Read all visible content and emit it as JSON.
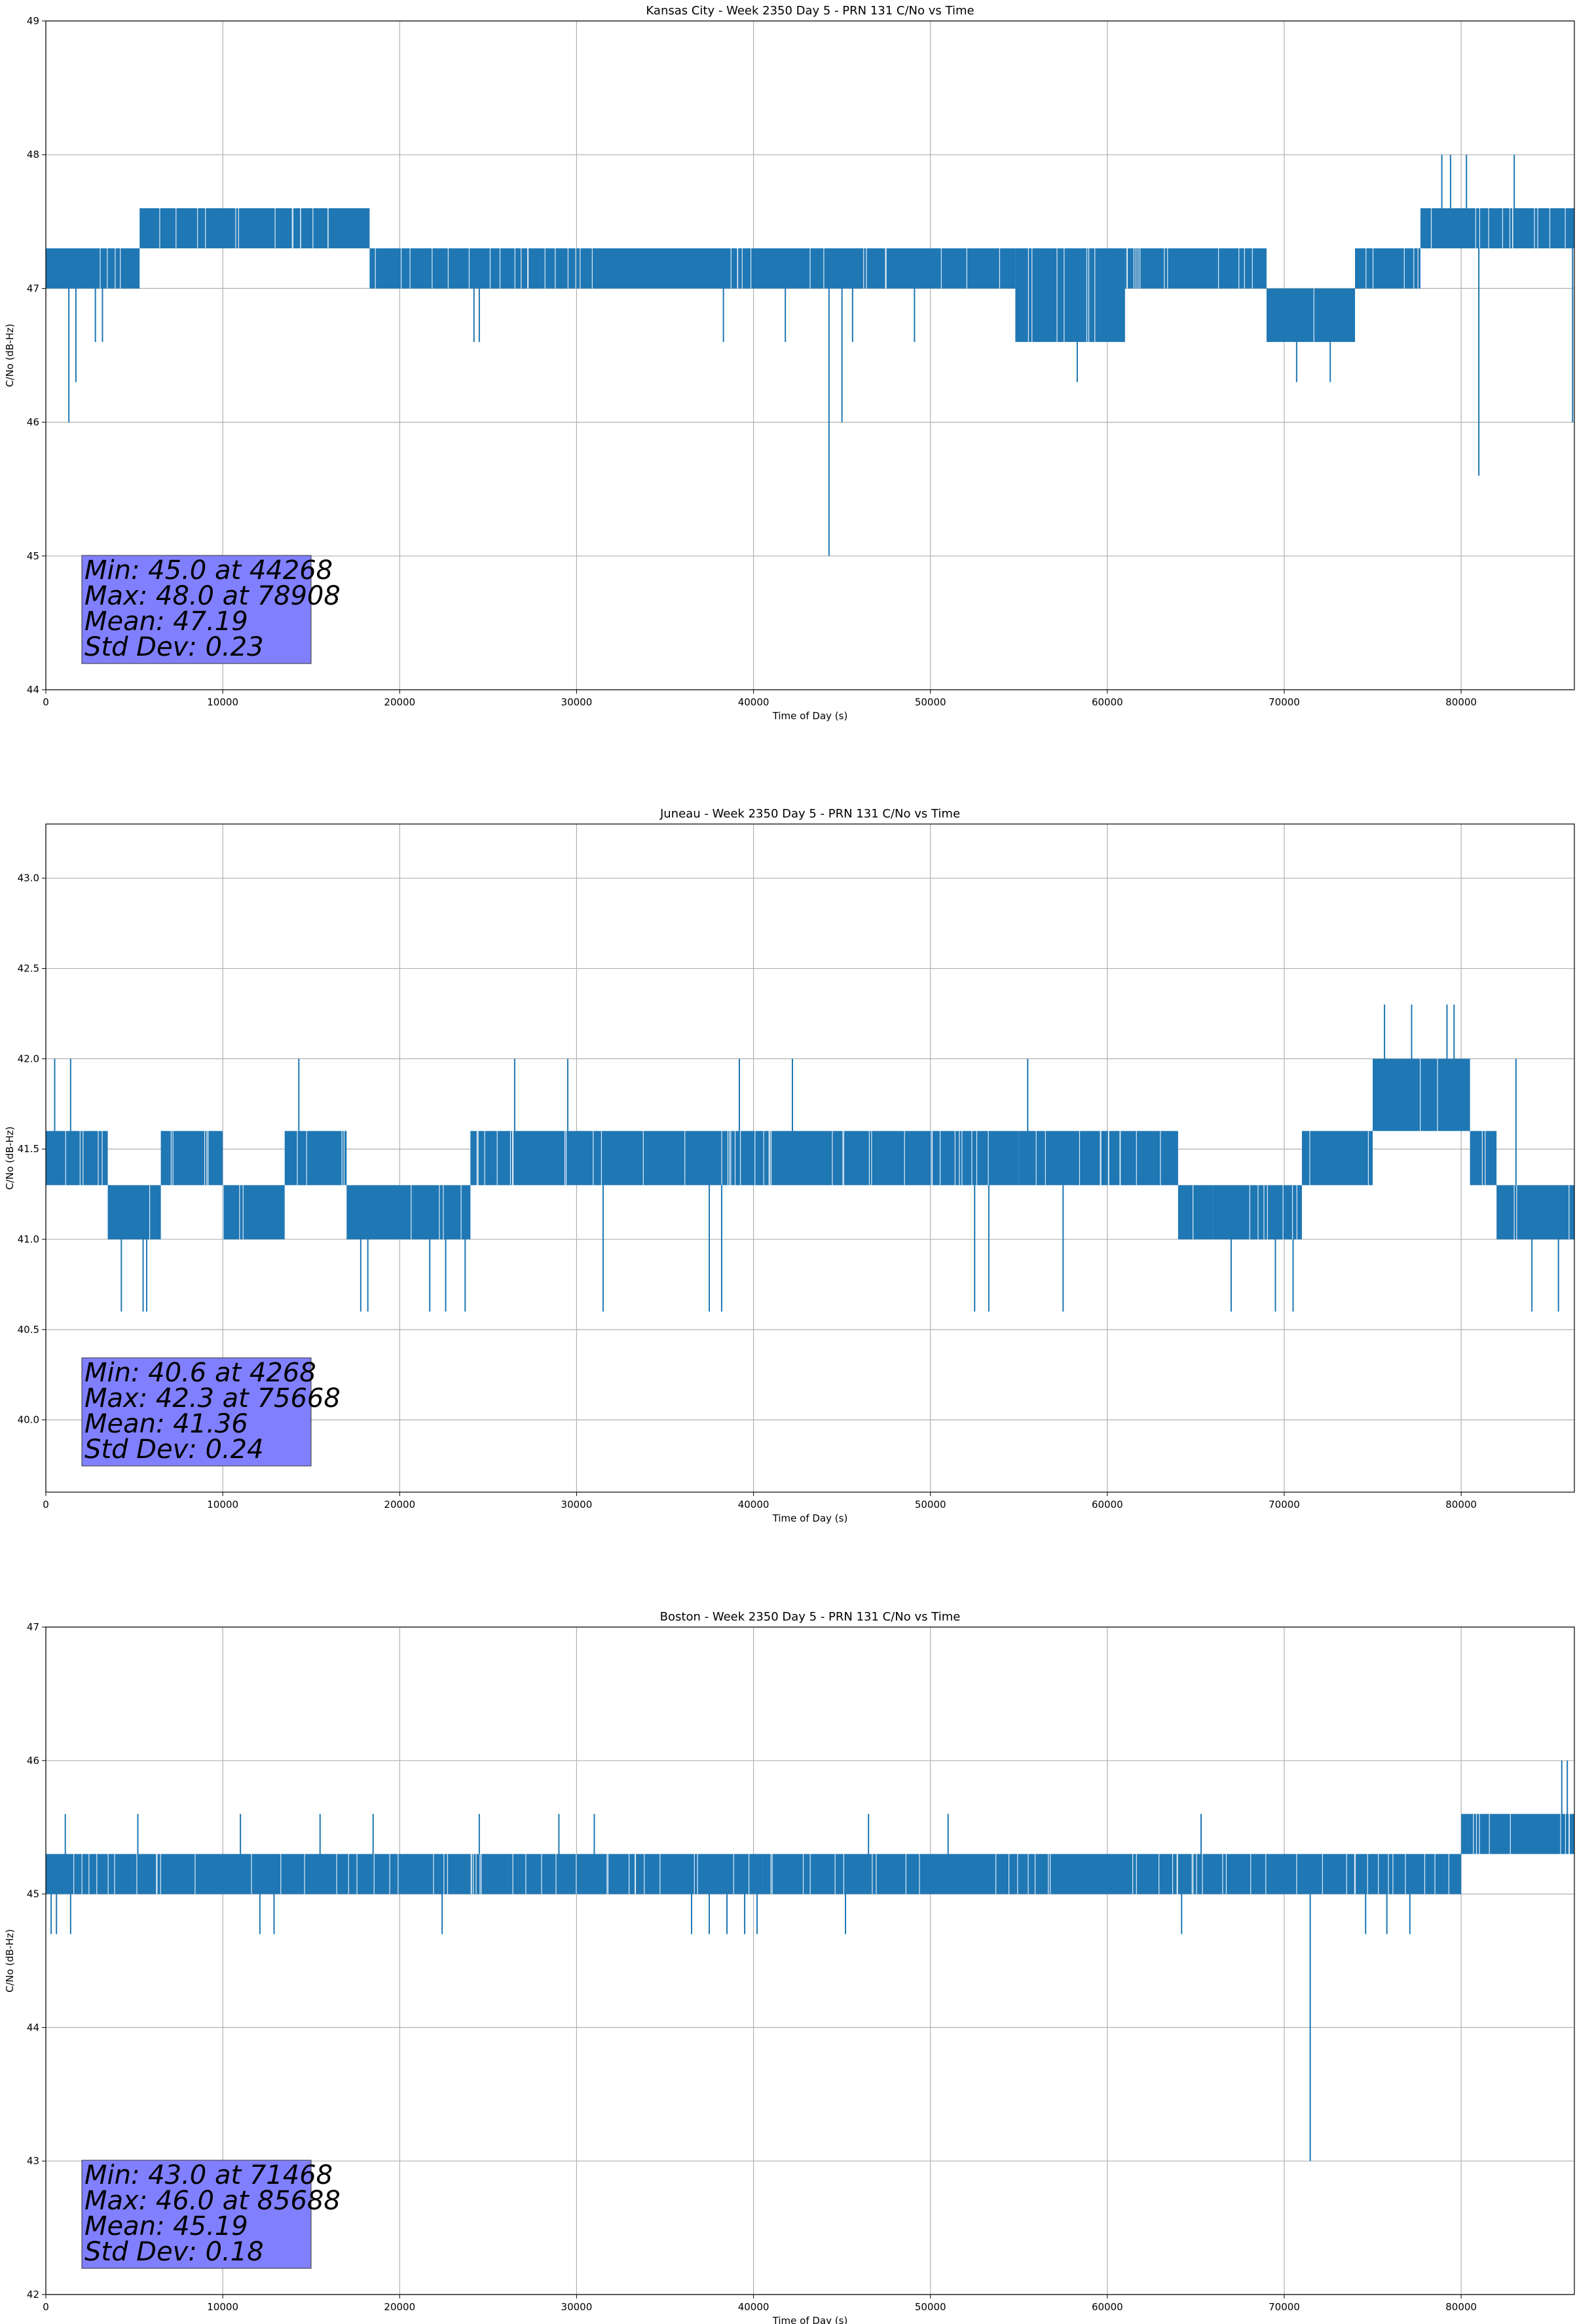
{
  "chart_data": [
    {
      "type": "line",
      "title": "Kansas City - Week 2350 Day 5 - PRN 131 C/No vs Time",
      "xlabel": "Time of Day (s)",
      "ylabel": "C/No (dB-Hz)",
      "xlim": [
        0,
        86400
      ],
      "ylim": [
        44,
        49
      ],
      "xticks": [
        0,
        10000,
        20000,
        30000,
        40000,
        50000,
        60000,
        70000,
        80000
      ],
      "yticks": [
        44,
        45,
        46,
        47,
        48,
        49
      ],
      "ytick_decimals": 0,
      "grid": true,
      "line_color": "#1f77b4",
      "stats_box_color": "#8080ff",
      "stats": [
        "Min: 45.0 at 44268",
        "Max: 48.0 at 78908",
        "Mean: 47.19",
        "Std Dev: 0.23"
      ],
      "segments": [
        {
          "x": [
            0,
            5300
          ],
          "lo": 47.0,
          "hi": 47.3
        },
        {
          "x": [
            5300,
            18300
          ],
          "lo": 47.3,
          "hi": 47.6
        },
        {
          "x": [
            18300,
            54800
          ],
          "lo": 47.0,
          "hi": 47.3
        },
        {
          "x": [
            54800,
            61000
          ],
          "lo": 46.6,
          "hi": 47.3
        },
        {
          "x": [
            61000,
            69000
          ],
          "lo": 47.0,
          "hi": 47.3
        },
        {
          "x": [
            69000,
            74000
          ],
          "lo": 46.6,
          "hi": 47.0
        },
        {
          "x": [
            74000,
            77700
          ],
          "lo": 47.0,
          "hi": 47.3
        },
        {
          "x": [
            77700,
            86400
          ],
          "lo": 47.3,
          "hi": 47.6
        }
      ],
      "spikes": [
        {
          "x": 1300,
          "y": 46.0
        },
        {
          "x": 1700,
          "y": 46.3
        },
        {
          "x": 2800,
          "y": 46.6
        },
        {
          "x": 3200,
          "y": 46.6
        },
        {
          "x": 24200,
          "y": 46.6
        },
        {
          "x": 24500,
          "y": 46.6
        },
        {
          "x": 38300,
          "y": 46.6
        },
        {
          "x": 41800,
          "y": 46.6
        },
        {
          "x": 44268,
          "y": 45.0
        },
        {
          "x": 45000,
          "y": 46.0
        },
        {
          "x": 45600,
          "y": 46.6
        },
        {
          "x": 49100,
          "y": 46.6
        },
        {
          "x": 58300,
          "y": 46.3
        },
        {
          "x": 70700,
          "y": 46.3
        },
        {
          "x": 72600,
          "y": 46.3
        },
        {
          "x": 81000,
          "y": 45.6
        },
        {
          "x": 86300,
          "y": 46.0
        },
        {
          "x": 78908,
          "y": 48.0
        },
        {
          "x": 79400,
          "y": 48.0
        },
        {
          "x": 80300,
          "y": 48.0
        },
        {
          "x": 83000,
          "y": 48.0
        }
      ]
    },
    {
      "type": "line",
      "title": "Juneau - Week 2350 Day 5 - PRN 131 C/No vs Time",
      "xlabel": "Time of Day (s)",
      "ylabel": "C/No (dB-Hz)",
      "xlim": [
        0,
        86400
      ],
      "ylim": [
        39.6,
        43.3
      ],
      "xticks": [
        0,
        10000,
        20000,
        30000,
        40000,
        50000,
        60000,
        70000,
        80000
      ],
      "yticks": [
        40.0,
        40.5,
        41.0,
        41.5,
        42.0,
        42.5,
        43.0
      ],
      "ytick_decimals": 1,
      "grid": true,
      "line_color": "#1f77b4",
      "stats_box_color": "#8080ff",
      "stats": [
        "Min: 40.6 at 4268",
        "Max: 42.3 at 75668",
        "Mean: 41.36",
        "Std Dev: 0.24"
      ],
      "segments": [
        {
          "x": [
            0,
            3500
          ],
          "lo": 41.3,
          "hi": 41.6
        },
        {
          "x": [
            3500,
            6500
          ],
          "lo": 41.0,
          "hi": 41.3
        },
        {
          "x": [
            6500,
            10000
          ],
          "lo": 41.3,
          "hi": 41.6
        },
        {
          "x": [
            10000,
            13500
          ],
          "lo": 41.0,
          "hi": 41.3
        },
        {
          "x": [
            13500,
            17000
          ],
          "lo": 41.3,
          "hi": 41.6
        },
        {
          "x": [
            17000,
            24000
          ],
          "lo": 41.0,
          "hi": 41.3
        },
        {
          "x": [
            24000,
            55000
          ],
          "lo": 41.3,
          "hi": 41.6
        },
        {
          "x": [
            55000,
            60000
          ],
          "lo": 41.3,
          "hi": 41.6
        },
        {
          "x": [
            60000,
            64000
          ],
          "lo": 41.3,
          "hi": 41.6
        },
        {
          "x": [
            64000,
            66000
          ],
          "lo": 41.0,
          "hi": 41.3
        },
        {
          "x": [
            66000,
            71000
          ],
          "lo": 41.0,
          "hi": 41.3
        },
        {
          "x": [
            71000,
            75000
          ],
          "lo": 41.3,
          "hi": 41.6
        },
        {
          "x": [
            75000,
            80500
          ],
          "lo": 41.6,
          "hi": 42.0
        },
        {
          "x": [
            80500,
            82000
          ],
          "lo": 41.3,
          "hi": 41.6
        },
        {
          "x": [
            82000,
            86400
          ],
          "lo": 41.0,
          "hi": 41.3
        }
      ],
      "spikes": [
        {
          "x": 4268,
          "y": 40.6
        },
        {
          "x": 5500,
          "y": 40.6
        },
        {
          "x": 5700,
          "y": 40.6
        },
        {
          "x": 17800,
          "y": 40.6
        },
        {
          "x": 18200,
          "y": 40.6
        },
        {
          "x": 21700,
          "y": 40.6
        },
        {
          "x": 22600,
          "y": 40.6
        },
        {
          "x": 23700,
          "y": 40.6
        },
        {
          "x": 31500,
          "y": 40.6
        },
        {
          "x": 37500,
          "y": 40.6
        },
        {
          "x": 38200,
          "y": 40.6
        },
        {
          "x": 52500,
          "y": 40.6
        },
        {
          "x": 53300,
          "y": 40.6
        },
        {
          "x": 57500,
          "y": 40.6
        },
        {
          "x": 67000,
          "y": 40.6
        },
        {
          "x": 69500,
          "y": 40.6
        },
        {
          "x": 70500,
          "y": 40.6
        },
        {
          "x": 84000,
          "y": 40.6
        },
        {
          "x": 85500,
          "y": 40.6
        },
        {
          "x": 75668,
          "y": 42.3
        },
        {
          "x": 77200,
          "y": 42.3
        },
        {
          "x": 79200,
          "y": 42.3
        },
        {
          "x": 79600,
          "y": 42.3
        },
        {
          "x": 14300,
          "y": 42.0
        },
        {
          "x": 26500,
          "y": 42.0
        },
        {
          "x": 29500,
          "y": 42.0
        },
        {
          "x": 39200,
          "y": 42.0
        },
        {
          "x": 42200,
          "y": 42.0
        },
        {
          "x": 55500,
          "y": 42.0
        },
        {
          "x": 83100,
          "y": 42.0
        },
        {
          "x": 500,
          "y": 42.0
        },
        {
          "x": 1400,
          "y": 42.0
        }
      ]
    },
    {
      "type": "line",
      "title": "Boston - Week 2350 Day 5 - PRN 131 C/No vs Time",
      "xlabel": "Time of Day (s)",
      "ylabel": "C/No (dB-Hz)",
      "xlim": [
        0,
        86400
      ],
      "ylim": [
        42,
        47
      ],
      "xticks": [
        0,
        10000,
        20000,
        30000,
        40000,
        50000,
        60000,
        70000,
        80000
      ],
      "yticks": [
        42,
        43,
        44,
        45,
        46,
        47
      ],
      "ytick_decimals": 0,
      "grid": true,
      "line_color": "#1f77b4",
      "stats_box_color": "#8080ff",
      "stats": [
        "Min: 43.0 at 71468",
        "Max: 46.0 at 85688",
        "Mean: 45.19",
        "Std Dev: 0.18"
      ],
      "segments": [
        {
          "x": [
            0,
            36000
          ],
          "lo": 45.0,
          "hi": 45.3
        },
        {
          "x": [
            36000,
            40500
          ],
          "lo": 45.0,
          "hi": 45.3
        },
        {
          "x": [
            40500,
            74000
          ],
          "lo": 45.0,
          "hi": 45.3
        },
        {
          "x": [
            74000,
            78000
          ],
          "lo": 45.0,
          "hi": 45.3
        },
        {
          "x": [
            78000,
            80000
          ],
          "lo": 45.0,
          "hi": 45.3
        },
        {
          "x": [
            80000,
            86400
          ],
          "lo": 45.3,
          "hi": 45.6
        }
      ],
      "spikes": [
        {
          "x": 71468,
          "y": 43.0
        },
        {
          "x": 300,
          "y": 44.7
        },
        {
          "x": 600,
          "y": 44.7
        },
        {
          "x": 1400,
          "y": 44.7
        },
        {
          "x": 12100,
          "y": 44.7
        },
        {
          "x": 12900,
          "y": 44.7
        },
        {
          "x": 22400,
          "y": 44.7
        },
        {
          "x": 36500,
          "y": 44.7
        },
        {
          "x": 37500,
          "y": 44.7
        },
        {
          "x": 38500,
          "y": 44.7
        },
        {
          "x": 39500,
          "y": 44.7
        },
        {
          "x": 40200,
          "y": 44.7
        },
        {
          "x": 45200,
          "y": 44.7
        },
        {
          "x": 64200,
          "y": 44.7
        },
        {
          "x": 74600,
          "y": 44.7
        },
        {
          "x": 75800,
          "y": 44.7
        },
        {
          "x": 77100,
          "y": 44.7
        },
        {
          "x": 85688,
          "y": 46.0
        },
        {
          "x": 86000,
          "y": 46.0
        },
        {
          "x": 1100,
          "y": 45.6
        },
        {
          "x": 5200,
          "y": 45.6
        },
        {
          "x": 11000,
          "y": 45.6
        },
        {
          "x": 15500,
          "y": 45.6
        },
        {
          "x": 18500,
          "y": 45.6
        },
        {
          "x": 24500,
          "y": 45.6
        },
        {
          "x": 29000,
          "y": 45.6
        },
        {
          "x": 31000,
          "y": 45.6
        },
        {
          "x": 46500,
          "y": 45.6
        },
        {
          "x": 51000,
          "y": 45.6
        },
        {
          "x": 65300,
          "y": 45.6
        }
      ]
    }
  ]
}
